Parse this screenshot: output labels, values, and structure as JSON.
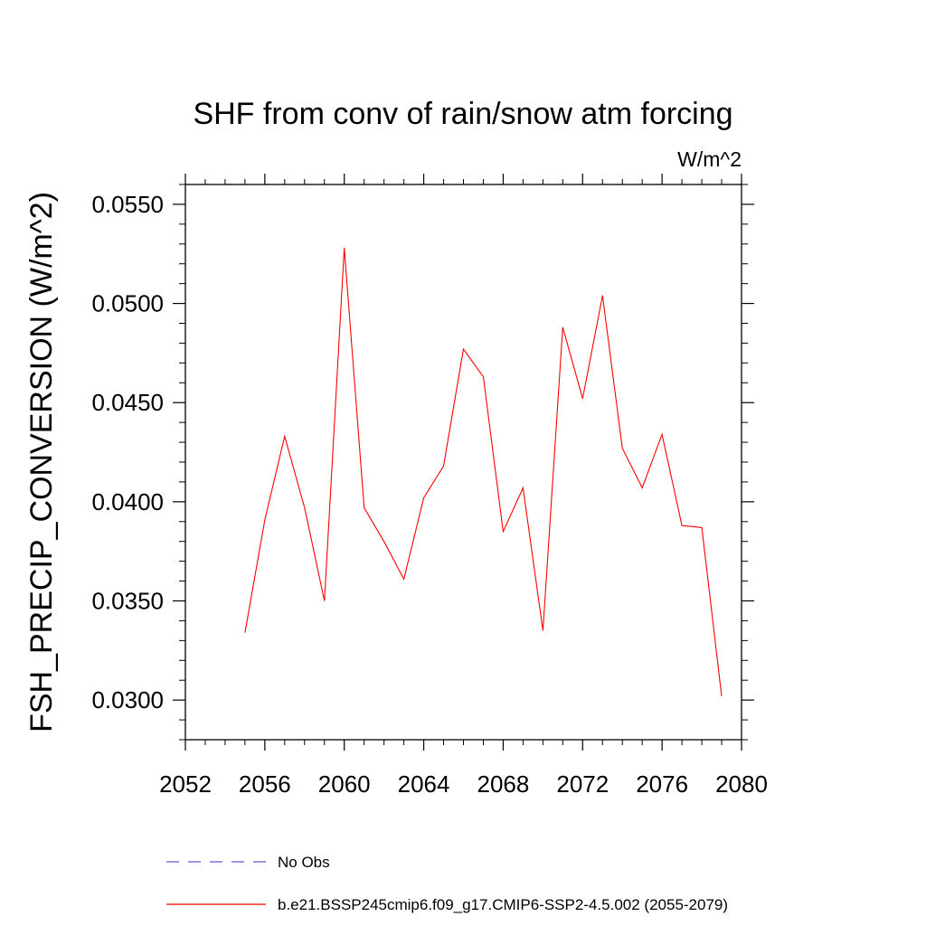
{
  "chart_data": {
    "type": "line",
    "title": "SHF from conv of rain/snow atm forcing",
    "units": "W/m^2",
    "ylabel": "FSH_PRECIP_CONVERSION  (W/m^2)",
    "xlabel": "",
    "xlim": [
      2052,
      2080
    ],
    "ylim": [
      0.028,
      0.056
    ],
    "x_ticks": [
      2052,
      2056,
      2060,
      2064,
      2068,
      2072,
      2076,
      2080
    ],
    "x_tick_labels": [
      "2052",
      "2056",
      "2060",
      "2064",
      "2068",
      "2072",
      "2076",
      "2080"
    ],
    "y_ticks": [
      0.03,
      0.035,
      0.04,
      0.045,
      0.05,
      0.055
    ],
    "y_tick_labels": [
      "0.0300",
      "0.0350",
      "0.0400",
      "0.0450",
      "0.0500",
      "0.0550"
    ],
    "grid": false,
    "legend_position": "bottom",
    "series": [
      {
        "name": "b.e21.BSSP245cmip6.f09_g17.CMIP6-SSP2-4.5.002 (2055-2079)",
        "color": "#ff0000",
        "style": "solid",
        "x": [
          2055,
          2056,
          2057,
          2058,
          2059,
          2060,
          2061,
          2062,
          2063,
          2064,
          2065,
          2066,
          2067,
          2068,
          2069,
          2070,
          2071,
          2072,
          2073,
          2074,
          2075,
          2076,
          2077,
          2078,
          2079
        ],
        "y": [
          0.0334,
          0.0391,
          0.0433,
          0.0397,
          0.035,
          0.0528,
          0.0397,
          0.038,
          0.0361,
          0.0402,
          0.0418,
          0.0477,
          0.0463,
          0.0385,
          0.0407,
          0.0335,
          0.0488,
          0.0452,
          0.0504,
          0.0427,
          0.0407,
          0.0434,
          0.0388,
          0.0387,
          0.0302
        ]
      }
    ],
    "legend": [
      {
        "label": "No Obs",
        "color": "#5a5ad0",
        "style": "dashed"
      },
      {
        "label": "b.e21.BSSP245cmip6.f09_g17.CMIP6-SSP2-4.5.002 (2055-2079)",
        "color": "#ff0000",
        "style": "solid"
      }
    ]
  }
}
